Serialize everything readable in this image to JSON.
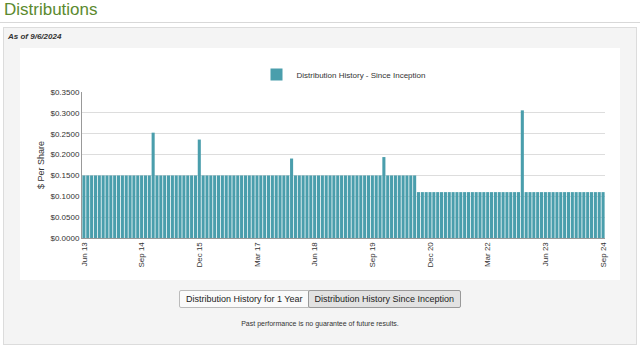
{
  "header": {
    "title": "Distributions",
    "as_of": "As of 9/6/2024"
  },
  "chart_data": {
    "type": "bar",
    "categories": [
      "Jun 13",
      null,
      null,
      null,
      null,
      null,
      null,
      null,
      null,
      null,
      null,
      null,
      null,
      null,
      null,
      "Sep 14",
      null,
      null,
      null,
      null,
      null,
      null,
      null,
      null,
      null,
      null,
      null,
      null,
      null,
      null,
      "Dec 15",
      null,
      null,
      null,
      null,
      null,
      null,
      null,
      null,
      null,
      null,
      null,
      null,
      null,
      null,
      "Mar 17",
      null,
      null,
      null,
      null,
      null,
      null,
      null,
      null,
      null,
      null,
      null,
      null,
      null,
      null,
      "Jun 18",
      null,
      null,
      null,
      null,
      null,
      null,
      null,
      null,
      null,
      null,
      null,
      null,
      null,
      null,
      "Sep 19",
      null,
      null,
      null,
      null,
      null,
      null,
      null,
      null,
      null,
      null,
      null,
      null,
      null,
      null,
      "Dec 20",
      null,
      null,
      null,
      null,
      null,
      null,
      null,
      null,
      null,
      null,
      null,
      null,
      null,
      null,
      "Mar 22",
      null,
      null,
      null,
      null,
      null,
      null,
      null,
      null,
      null,
      null,
      null,
      null,
      null,
      null,
      "Jun 23",
      null,
      null,
      null,
      null,
      null,
      null,
      null,
      null,
      null,
      null,
      null,
      null,
      null,
      null,
      "Sep 24"
    ],
    "series": [
      {
        "name": "Distribution History - Since Inception",
        "color": "#4a9eac",
        "values": [
          0.15,
          0.15,
          0.15,
          0.15,
          0.15,
          0.15,
          0.15,
          0.15,
          0.15,
          0.15,
          0.15,
          0.15,
          0.15,
          0.15,
          0.15,
          0.15,
          0.15,
          0.15,
          0.2525,
          0.15,
          0.15,
          0.15,
          0.15,
          0.15,
          0.15,
          0.15,
          0.15,
          0.15,
          0.15,
          0.15,
          0.236,
          0.15,
          0.15,
          0.15,
          0.15,
          0.15,
          0.15,
          0.15,
          0.15,
          0.15,
          0.15,
          0.15,
          0.15,
          0.15,
          0.15,
          0.15,
          0.15,
          0.15,
          0.15,
          0.15,
          0.15,
          0.15,
          0.15,
          0.15,
          0.1905,
          0.15,
          0.15,
          0.15,
          0.15,
          0.15,
          0.15,
          0.15,
          0.15,
          0.15,
          0.15,
          0.15,
          0.15,
          0.15,
          0.15,
          0.15,
          0.15,
          0.15,
          0.15,
          0.15,
          0.15,
          0.15,
          0.15,
          0.15,
          0.194,
          0.15,
          0.15,
          0.15,
          0.15,
          0.15,
          0.15,
          0.15,
          0.15,
          0.11,
          0.11,
          0.11,
          0.11,
          0.11,
          0.11,
          0.11,
          0.11,
          0.11,
          0.11,
          0.11,
          0.11,
          0.11,
          0.11,
          0.11,
          0.11,
          0.11,
          0.11,
          0.11,
          0.11,
          0.11,
          0.11,
          0.11,
          0.11,
          0.11,
          0.11,
          0.11,
          0.306,
          0.11,
          0.11,
          0.11,
          0.11,
          0.11,
          0.11,
          0.11,
          0.11,
          0.11,
          0.11,
          0.11,
          0.11,
          0.11,
          0.11,
          0.11,
          0.11,
          0.11,
          0.11,
          0.11,
          0.11,
          0.11
        ]
      }
    ],
    "ylabel": "$ Per Share",
    "ylim": [
      0,
      0.35
    ],
    "yticks": [
      {
        "value": 0,
        "label": "$0.0000"
      },
      {
        "value": 0.05,
        "label": "$0.0500"
      },
      {
        "value": 0.1,
        "label": "$0.1000"
      },
      {
        "value": 0.15,
        "label": "$0.1500"
      },
      {
        "value": 0.2,
        "label": "$0.2000"
      },
      {
        "value": 0.25,
        "label": "$0.2500"
      },
      {
        "value": 0.3,
        "label": "$0.3000"
      },
      {
        "value": 0.35,
        "label": "$0.3500"
      }
    ],
    "grid": true,
    "legend": "top"
  },
  "buttons": [
    "Distribution History for 1 Year",
    "Distribution History Since Inception"
  ],
  "footer": "Past performance is no guarantee of future results."
}
